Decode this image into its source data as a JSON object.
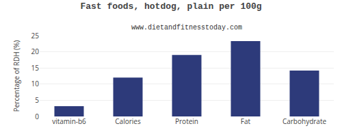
{
  "chart_data": {
    "type": "bar",
    "title": "Fast foods, hotdog, plain per 100g",
    "subtitle": "www.dietandfitnesstoday.com",
    "categories": [
      "vitamin-b6",
      "Calories",
      "Protein",
      "Fat",
      "Carbohydrate"
    ],
    "values": [
      3.2,
      12.0,
      19.0,
      23.3,
      14.2
    ],
    "color": "#2d3a7a",
    "ylabel": "Percentage of RDH (%)",
    "ylim": [
      0,
      25
    ],
    "yticks": [
      0,
      5,
      10,
      15,
      20,
      25
    ],
    "grid": true
  }
}
